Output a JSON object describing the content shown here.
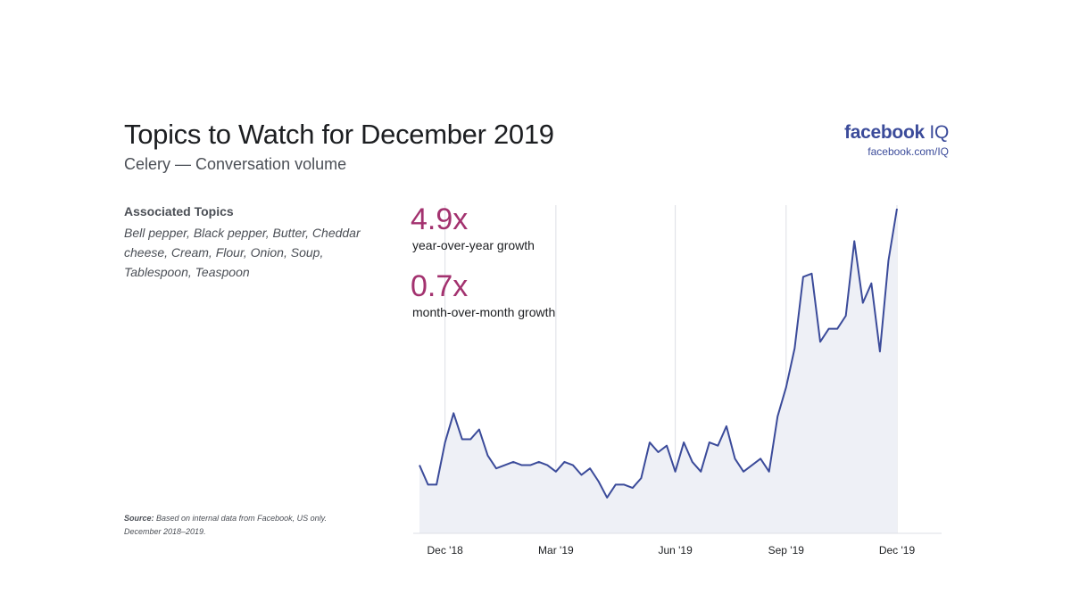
{
  "header": {
    "title": "Topics to Watch for December 2019",
    "subtitle": "Celery — Conversation volume"
  },
  "brand": {
    "name": "facebook",
    "suffix": "IQ",
    "url": "facebook.com/IQ",
    "color": "#3b4b9a"
  },
  "associated_topics": {
    "heading": "Associated Topics",
    "list": "Bell pepper, Black pepper, Butter, Cheddar cheese, Cream, Flour, Onion, Soup, Tablespoon, Teaspoon"
  },
  "stats": {
    "yoy_value": "4.9x",
    "yoy_label": "year-over-year growth",
    "mom_value": "0.7x",
    "mom_label": "month-over-month growth",
    "accent_color": "#a3326f"
  },
  "source": {
    "label": "Source:",
    "text": "Based on internal data from Facebook, US only. December 2018–2019."
  },
  "chart_data": {
    "type": "area",
    "title": "",
    "xlabel": "",
    "ylabel": "",
    "x_tick_labels": [
      "Dec '18",
      "Mar '19",
      "Jun '19",
      "Sep '19",
      "Dec '19"
    ],
    "x_tick_week_index": [
      3,
      16,
      30,
      43,
      56
    ],
    "line_color": "#3b4b9a",
    "fill_color": "#eef0f6",
    "ylim": [
      0,
      100
    ],
    "y_axis_labels_shown": false,
    "values": [
      21,
      15,
      15,
      28,
      37,
      29,
      29,
      32,
      24,
      20,
      21,
      22,
      21,
      21,
      22,
      21,
      19,
      22,
      21,
      18,
      20,
      16,
      11,
      15,
      15,
      14,
      17,
      28,
      25,
      27,
      19,
      28,
      22,
      19,
      28,
      27,
      33,
      23,
      19,
      21,
      23,
      19,
      36,
      45,
      57,
      79,
      80,
      59,
      63,
      63,
      67,
      90,
      71,
      77,
      56,
      84,
      100
    ]
  }
}
